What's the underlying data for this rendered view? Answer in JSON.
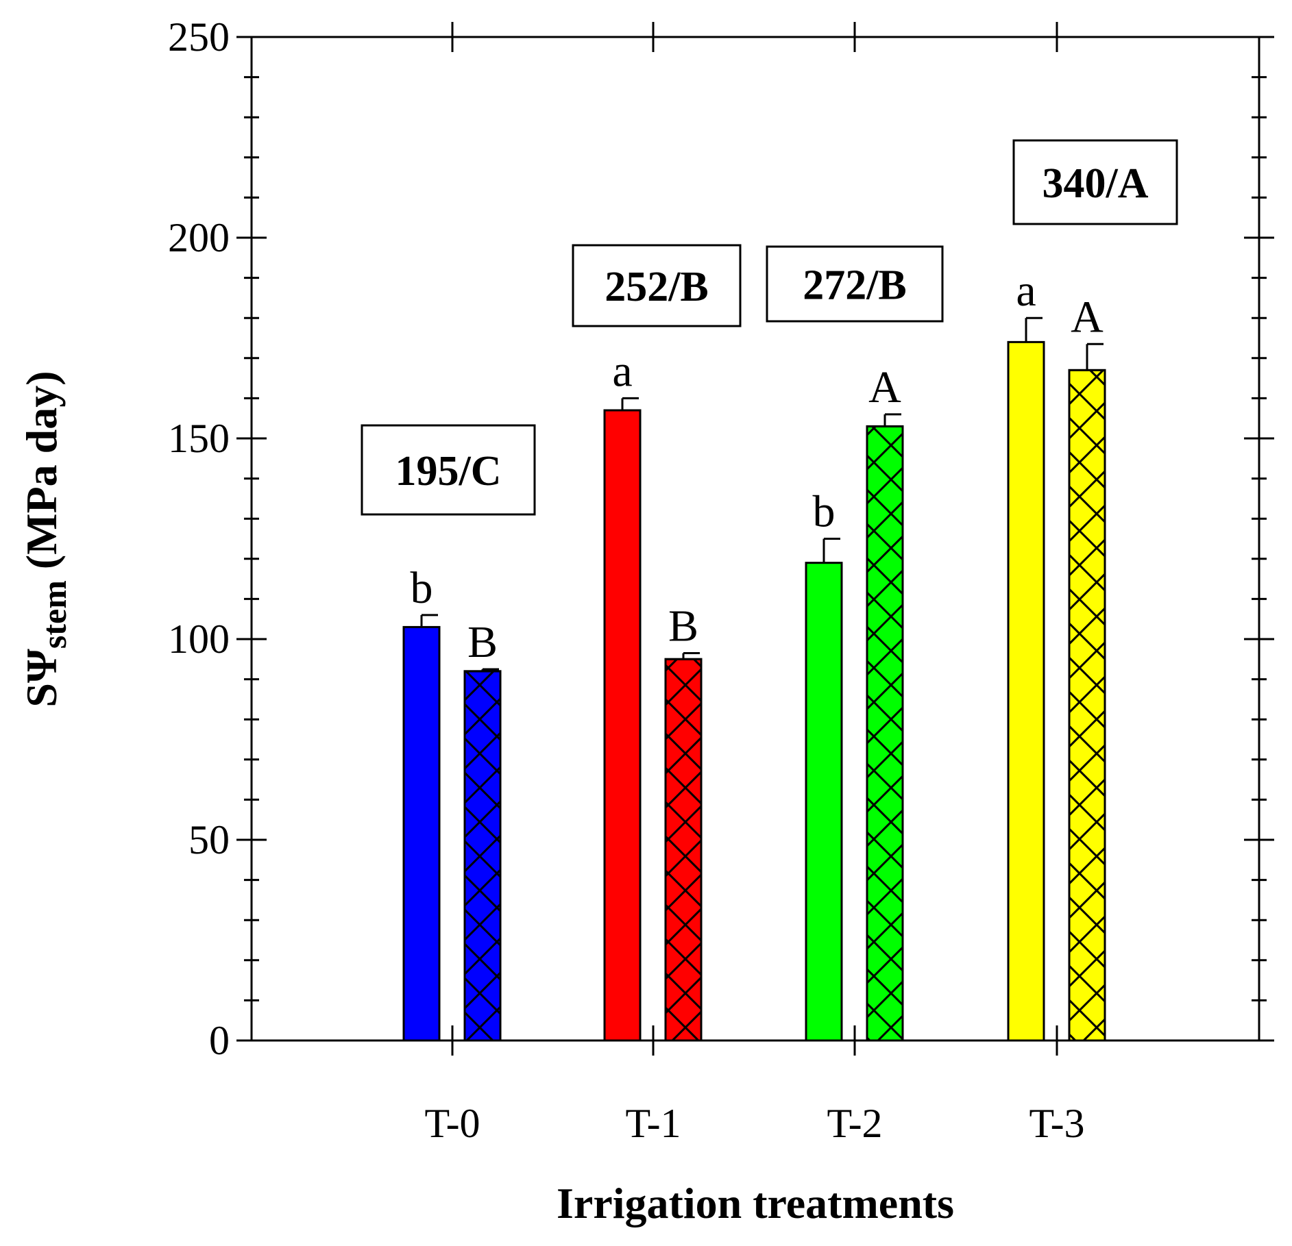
{
  "chart_data": {
    "type": "bar",
    "title": "",
    "xlabel": "Irrigation treatments",
    "ylabel": {
      "prefix": "SΨ",
      "subscript": "stem",
      "suffix": " (MPa day)"
    },
    "ylim": [
      0,
      250
    ],
    "yticks": [
      0,
      50,
      100,
      150,
      200,
      250
    ],
    "categories": [
      "T-0",
      "T-1",
      "T-2",
      "T-3"
    ],
    "category_colors": [
      "#0000ff",
      "#ff0000",
      "#00ff00",
      "#ffff00"
    ],
    "grid": false,
    "series": [
      {
        "name": "solid bars",
        "pattern": "solid",
        "values": [
          103,
          157,
          119,
          174
        ],
        "errors": [
          3,
          3,
          6,
          6
        ],
        "letters": [
          "b",
          "a",
          "b",
          "a"
        ]
      },
      {
        "name": "cross-hatched bars",
        "pattern": "crosshatch",
        "values": [
          92,
          95,
          153,
          167
        ],
        "errors": [
          0.5,
          1.5,
          3,
          6.5
        ],
        "letters": [
          "B",
          "B",
          "A",
          "A"
        ]
      }
    ],
    "annotations": [
      "195/C",
      "252/B",
      "272/B",
      "340/A"
    ]
  }
}
